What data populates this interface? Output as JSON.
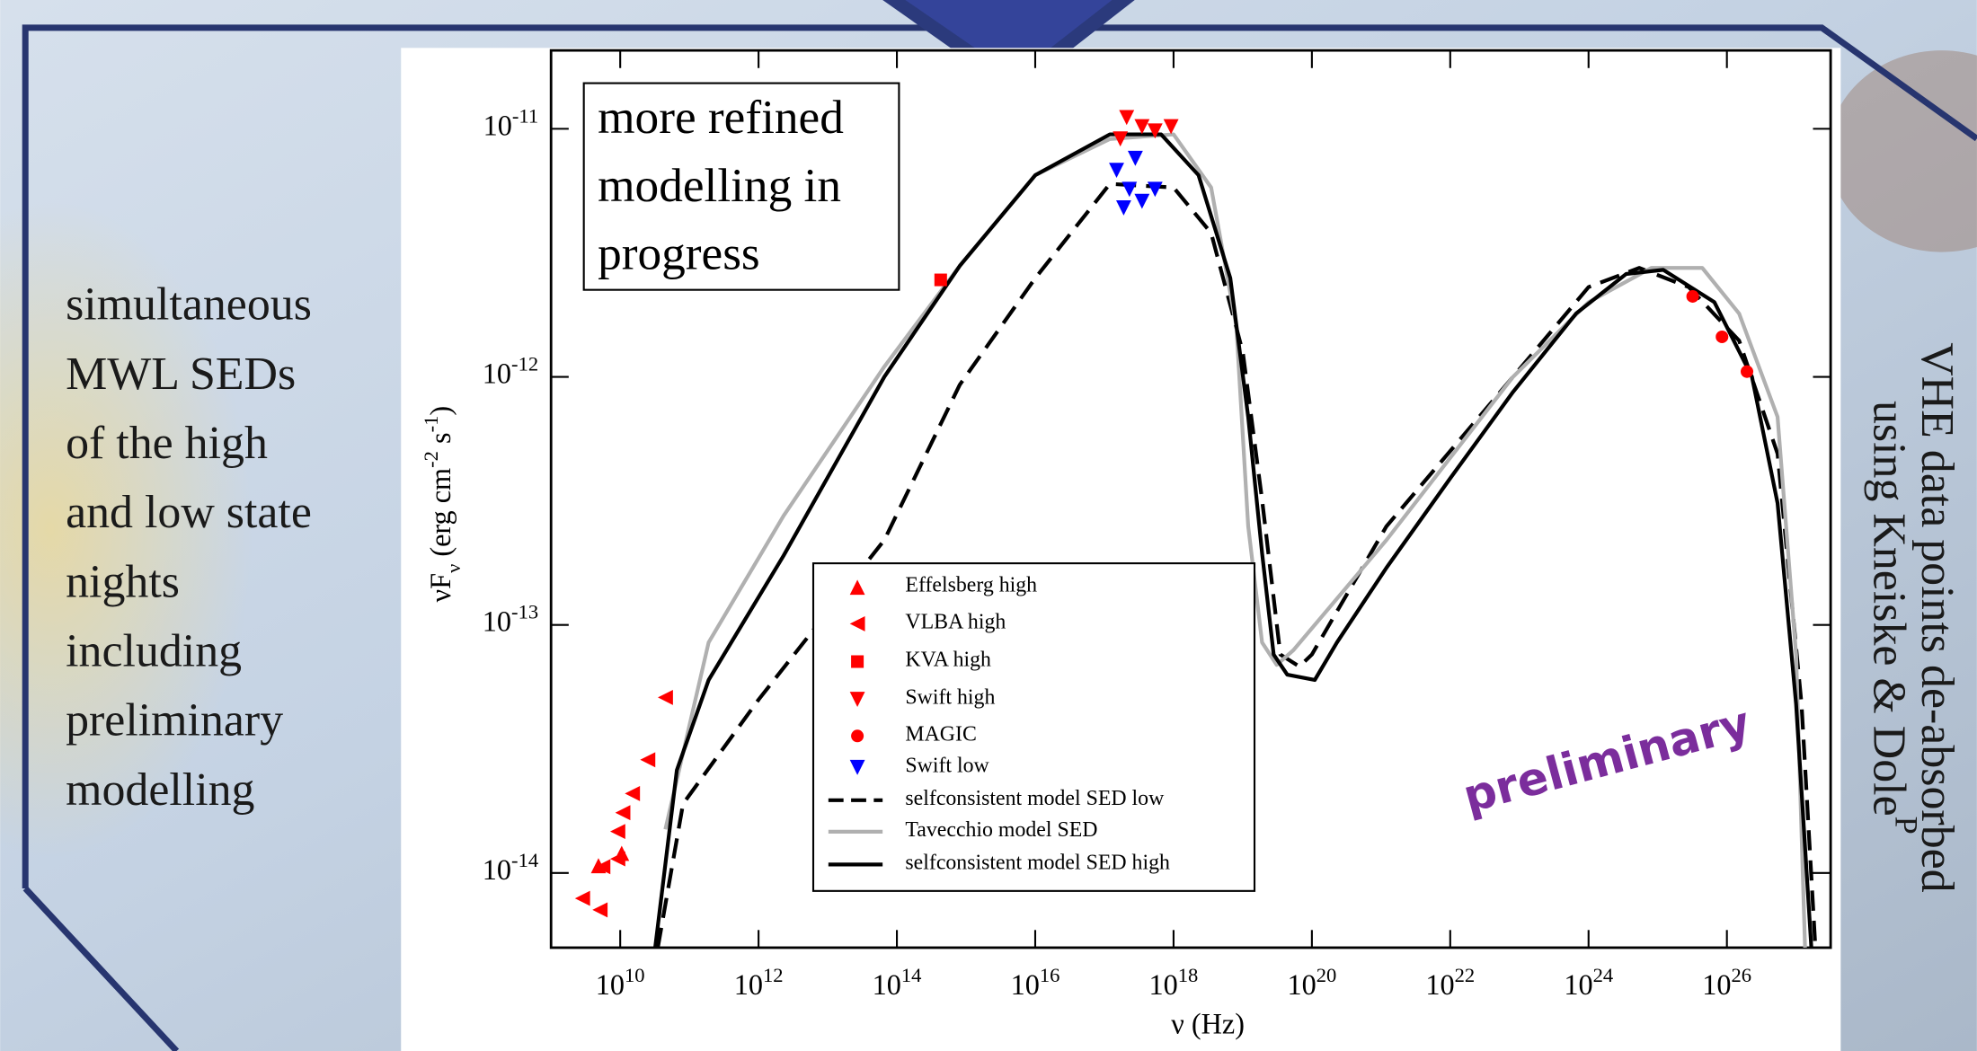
{
  "slide": {
    "left_text": [
      "simultaneous",
      "MWL SEDs",
      "of  the high",
      "and low state",
      "nights",
      "including",
      "preliminary",
      "modelling"
    ],
    "right_text": [
      "VHE data points de-absorbed",
      "using Kneiske & Dole^{P}"
    ]
  },
  "chart_data": {
    "type": "scatter",
    "xlabel": "ν (Hz)",
    "ylabel": "νF_{ν} (erg cm^{-2} s^{-1})",
    "note_lines": [
      "more refined",
      "modelling in",
      "progress"
    ],
    "watermark": "preliminary",
    "log_x": true,
    "log_y": true,
    "xlim": [
      1000000000.0,
      3.16e+27
    ],
    "ylim": [
      5e-15,
      2.07e-11
    ],
    "xticks": [
      {
        "value": 10000000000.0,
        "label": "10^{10}"
      },
      {
        "value": 1000000000000.0,
        "label": "10^{12}"
      },
      {
        "value": 100000000000000.0,
        "label": "10^{14}"
      },
      {
        "value": 1e+16,
        "label": "10^{16}"
      },
      {
        "value": 1e+18,
        "label": "10^{18}"
      },
      {
        "value": 1e+20,
        "label": "10^{20}"
      },
      {
        "value": 1e+22,
        "label": "10^{22}"
      },
      {
        "value": 1e+24,
        "label": "10^{24}"
      },
      {
        "value": 1e+26,
        "label": "10^{26}"
      }
    ],
    "yticks": [
      {
        "value": 1e-14,
        "label": "10^{-14}"
      },
      {
        "value": 1e-13,
        "label": "10^{-13}"
      },
      {
        "value": 1e-12,
        "label": "10^{-12}"
      },
      {
        "value": 1e-11,
        "label": "10^{-11}"
      }
    ],
    "series": [
      {
        "name": "Effelsberg high",
        "color": "#ff0000",
        "marker": "triangle-up",
        "x": [
          4850000000.0,
          10500000000.0
        ],
        "values": [
          1.07e-14,
          1.2e-14
        ]
      },
      {
        "name": "VLBA high",
        "color": "#ff0000",
        "marker": "triangle-left",
        "x": [
          2850000000.0,
          5100000000.0,
          5600000000.0,
          9200000000.0,
          9200000000.0,
          10900000000.0,
          15000000000.0,
          25000000000.0,
          45000000000.0
        ],
        "values": [
          7.9e-15,
          7.1e-15,
          1.06e-14,
          1.14e-14,
          1.47e-14,
          1.75e-14,
          2.09e-14,
          2.86e-14,
          5.1e-14
        ]
      },
      {
        "name": "KVA high",
        "color": "#ff0000",
        "marker": "square",
        "x": [
          430000000000000.0
        ],
        "values": [
          2.46e-12
        ]
      },
      {
        "name": "Swift high",
        "color": "#ff0000",
        "marker": "triangle-down",
        "x": [
          1.7e+17,
          2.1e+17,
          3.5e+17,
          5.4e+17,
          9.2e+17
        ],
        "values": [
          9.1e-12,
          1.11e-11,
          1.02e-11,
          9.8e-12,
          1.02e-11
        ]
      },
      {
        "name": "MAGIC",
        "color": "#ff0000",
        "marker": "circle",
        "x": [
          3.2e+25,
          8.5e+25,
          1.95e+26
        ],
        "values": [
          2.11e-12,
          1.45e-12,
          1.05e-12
        ]
      },
      {
        "name": "Swift low",
        "color": "#0000ff",
        "marker": "triangle-down",
        "x": [
          1.5e+17,
          1.9e+17,
          2.3e+17,
          2.8e+17,
          3.5e+17,
          5.4e+17
        ],
        "values": [
          6.8e-12,
          4.8e-12,
          5.7e-12,
          7.6e-12,
          5.1e-12,
          5.7e-12
        ]
      },
      {
        "name": "selfconsistent model SED low",
        "color": "#000000",
        "dash": true,
        "x": [
          35000000000.0,
          81000000000.0,
          1000000000000.0,
          66000000000000.0,
          810000000000000.0,
          1e+16,
          1.2e+17,
          1e+18,
          3.5e+18,
          1e+19,
          1.9e+19,
          3.5e+19,
          6.6e+19,
          1e+20,
          1.2e+21,
          8.1e+22,
          1e+24,
          5.4e+24,
          2.8e+25,
          1.5e+26,
          5.4e+26,
          1.2e+27,
          1.9e+27
        ],
        "values": [
          5e-15,
          1.9e-14,
          5e-14,
          2.2e-13,
          9.3e-13,
          2.5e-12,
          6e-12,
          5.8e-12,
          3.8e-12,
          1.26e-12,
          3.2e-13,
          7.6e-14,
          6.8e-14,
          7.6e-14,
          2.5e-13,
          1e-12,
          2.3e-12,
          2.75e-12,
          2.3e-12,
          1.4e-12,
          4.9e-13,
          4.8e-14,
          5e-15
        ]
      },
      {
        "name": "Tavecchio model SED",
        "color": "#b0b0b0",
        "dash": false,
        "x": [
          45000000000.0,
          190000000000.0,
          2300000000000.0,
          66000000000000.0,
          810000000000000.0,
          1e+16,
          1.2e+17,
          1e+18,
          3.5e+18,
          8.1e+18,
          1.2e+19,
          1.9e+19,
          3.1e+19,
          5.4e+19,
          1.2e+21,
          8.1e+22,
          1e+24,
          8.1e+24,
          4.4e+25,
          1.5e+26,
          5.4e+26,
          1e+27,
          1.35e+27
        ],
        "values": [
          1.5e-14,
          8.5e-14,
          2.75e-13,
          1.1e-12,
          2.8e-12,
          6.5e-12,
          9.1e-12,
          9.5e-12,
          5.8e-12,
          1.6e-12,
          2.5e-13,
          8.5e-14,
          6.9e-14,
          7.9e-14,
          2.2e-13,
          1e-12,
          2e-12,
          2.75e-12,
          2.75e-12,
          1.8e-12,
          6.9e-13,
          7.6e-14,
          5e-15
        ]
      },
      {
        "name": "selfconsistent model SED high",
        "color": "#000000",
        "dash": false,
        "x": [
          32000000000.0,
          66000000000.0,
          190000000000.0,
          2300000000000.0,
          66000000000000.0,
          810000000000000.0,
          1e+16,
          1.2e+17,
          6.6e+17,
          2.3e+18,
          6.6e+18,
          1.2e+19,
          1.9e+19,
          2.8e+19,
          4.4e+19,
          1.1e+20,
          2.3e+20,
          1.2e+21,
          1e+22,
          8.1e+22,
          6.6e+23,
          3.5e+24,
          1.2e+25,
          6.6e+25,
          2.3e+26,
          5.4e+26,
          1e+27,
          1.66e+27
        ],
        "values": [
          5e-15,
          2.6e-14,
          6e-14,
          1.9e-13,
          1e-12,
          2.8e-12,
          6.5e-12,
          9.5e-12,
          9.5e-12,
          6.5e-12,
          2.5e-12,
          6.9e-13,
          1.95e-13,
          7.6e-14,
          6.3e-14,
          6e-14,
          8.5e-14,
          1.7e-13,
          3.9e-13,
          8.7e-13,
          1.8e-12,
          2.6e-12,
          2.7e-12,
          2e-12,
          1e-12,
          3.1e-13,
          4.8e-14,
          5e-15
        ]
      }
    ]
  }
}
